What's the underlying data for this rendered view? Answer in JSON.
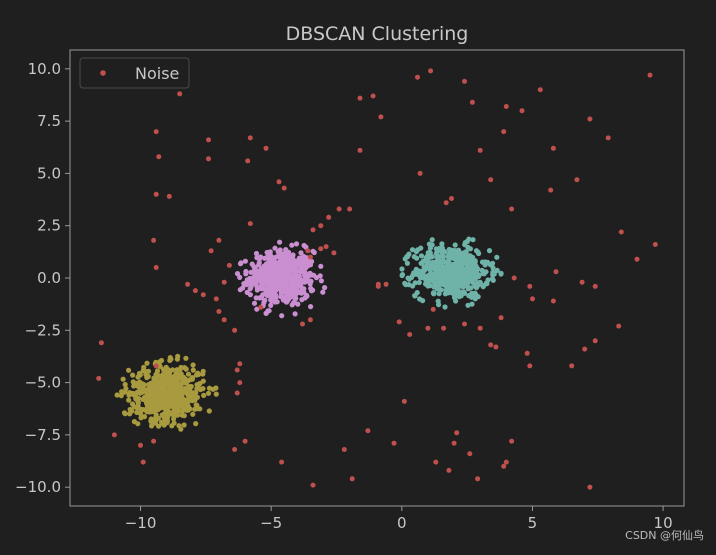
{
  "watermark": "CSDN @何仙鸟",
  "chart_data": {
    "type": "scatter",
    "title": "DBSCAN Clustering",
    "xlabel": "",
    "ylabel": "",
    "xlim": [
      -12.7,
      10.8
    ],
    "ylim": [
      -10.9,
      10.9
    ],
    "xticks": [
      -10,
      -5,
      0,
      5,
      10
    ],
    "yticks": [
      -10.0,
      -7.5,
      -5.0,
      -2.5,
      0.0,
      2.5,
      5.0,
      7.5,
      10.0
    ],
    "xtick_labels": [
      "−10",
      "−5",
      "0",
      "5",
      "10"
    ],
    "ytick_labels": [
      "−10.0",
      "−7.5",
      "−5.0",
      "−2.5",
      "0.0",
      "2.5",
      "5.0",
      "7.5",
      "10.0"
    ],
    "grid": false,
    "legend": {
      "position": "top-left",
      "entries": [
        "Noise"
      ]
    },
    "colors": {
      "background": "#1f1f1f",
      "axes": "#9a9a9a",
      "text": "#c8c8c8",
      "noise": "#c0504d"
    },
    "clusters": [
      {
        "color": "#c98fd0",
        "center": [
          -4.6,
          0.0
        ],
        "spread": [
          0.85,
          0.9
        ],
        "count": 520
      },
      {
        "color": "#6fb2a8",
        "center": [
          1.9,
          0.3
        ],
        "spread": [
          0.95,
          0.85
        ],
        "count": 520
      },
      {
        "color": "#a89a3e",
        "center": [
          -9.0,
          -5.5
        ],
        "spread": [
          0.95,
          0.9
        ],
        "count": 520
      }
    ],
    "series": [
      {
        "name": "Noise",
        "color": "#c0504d",
        "points": [
          [
            -11.5,
            -3.1
          ],
          [
            -11.6,
            -4.8
          ],
          [
            -11.0,
            -7.5
          ],
          [
            -10.0,
            -8.0
          ],
          [
            -9.9,
            -8.8
          ],
          [
            -9.5,
            -7.8
          ],
          [
            -9.4,
            -4.2
          ],
          [
            -9.5,
            1.8
          ],
          [
            -9.4,
            0.5
          ],
          [
            -9.4,
            7.0
          ],
          [
            -9.3,
            5.8
          ],
          [
            -9.4,
            4.0
          ],
          [
            -8.9,
            3.9
          ],
          [
            -8.5,
            8.8
          ],
          [
            -8.2,
            -0.3
          ],
          [
            -7.9,
            -0.6
          ],
          [
            -7.6,
            -0.8
          ],
          [
            -7.4,
            6.6
          ],
          [
            -7.4,
            5.7
          ],
          [
            -7.0,
            1.8
          ],
          [
            -7.3,
            1.3
          ],
          [
            -7.0,
            -1.6
          ],
          [
            -7.1,
            -1.0
          ],
          [
            -6.8,
            -0.2
          ],
          [
            -6.6,
            0.6
          ],
          [
            -6.8,
            -2.0
          ],
          [
            -6.4,
            -2.5
          ],
          [
            -6.2,
            -4.1
          ],
          [
            -6.3,
            -4.4
          ],
          [
            -6.2,
            -5.0
          ],
          [
            -6.3,
            -5.5
          ],
          [
            -6.0,
            -7.8
          ],
          [
            -6.4,
            -8.2
          ],
          [
            -5.9,
            5.6
          ],
          [
            -5.8,
            6.7
          ],
          [
            -5.8,
            2.6
          ],
          [
            -5.4,
            -1.4
          ],
          [
            -5.2,
            6.2
          ],
          [
            -4.7,
            4.6
          ],
          [
            -4.5,
            4.3
          ],
          [
            -4.6,
            -8.8
          ],
          [
            -3.8,
            -2.2
          ],
          [
            -3.6,
            1.3
          ],
          [
            -3.5,
            -2.0
          ],
          [
            -3.5,
            1.0
          ],
          [
            -3.4,
            2.3
          ],
          [
            -3.4,
            -9.9
          ],
          [
            -3.1,
            1.4
          ],
          [
            -3.1,
            2.5
          ],
          [
            -2.9,
            1.5
          ],
          [
            -2.8,
            2.9
          ],
          [
            -2.6,
            1.2
          ],
          [
            -2.4,
            3.3
          ],
          [
            -2.2,
            -8.2
          ],
          [
            -2.0,
            3.3
          ],
          [
            -1.9,
            -9.6
          ],
          [
            -1.6,
            8.6
          ],
          [
            -1.6,
            6.1
          ],
          [
            -1.3,
            -7.3
          ],
          [
            -1.1,
            8.7
          ],
          [
            -0.9,
            -0.3
          ],
          [
            -0.8,
            7.7
          ],
          [
            -0.6,
            -0.3
          ],
          [
            -0.9,
            -0.4
          ],
          [
            -0.3,
            -7.9
          ],
          [
            -0.1,
            -2.1
          ],
          [
            0.1,
            -5.9
          ],
          [
            0.3,
            -2.7
          ],
          [
            0.6,
            9.6
          ],
          [
            0.7,
            5.0
          ],
          [
            1.0,
            -2.4
          ],
          [
            1.1,
            9.9
          ],
          [
            1.2,
            -1.5
          ],
          [
            1.3,
            -8.8
          ],
          [
            1.8,
            -9.2
          ],
          [
            1.9,
            3.8
          ],
          [
            1.7,
            3.6
          ],
          [
            1.6,
            -2.4
          ],
          [
            2.1,
            -7.4
          ],
          [
            2.0,
            -7.9
          ],
          [
            2.4,
            9.4
          ],
          [
            2.4,
            -2.2
          ],
          [
            2.6,
            -8.4
          ],
          [
            2.7,
            8.4
          ],
          [
            2.9,
            -9.6
          ],
          [
            3.0,
            6.1
          ],
          [
            3.0,
            -2.4
          ],
          [
            3.4,
            4.7
          ],
          [
            3.4,
            -3.2
          ],
          [
            3.6,
            -3.3
          ],
          [
            3.8,
            -1.9
          ],
          [
            3.9,
            -9.0
          ],
          [
            3.9,
            7.0
          ],
          [
            4.0,
            8.2
          ],
          [
            4.0,
            -8.8
          ],
          [
            4.2,
            -7.8
          ],
          [
            4.2,
            3.3
          ],
          [
            4.3,
            0.0
          ],
          [
            4.6,
            8.0
          ],
          [
            4.8,
            -3.6
          ],
          [
            4.9,
            -4.2
          ],
          [
            4.9,
            -0.4
          ],
          [
            5.0,
            -1.0
          ],
          [
            5.3,
            9.0
          ],
          [
            5.7,
            4.2
          ],
          [
            5.8,
            6.2
          ],
          [
            5.8,
            -1.1
          ],
          [
            5.9,
            0.3
          ],
          [
            6.5,
            -4.2
          ],
          [
            6.7,
            4.7
          ],
          [
            6.9,
            -0.2
          ],
          [
            7.0,
            -3.4
          ],
          [
            7.2,
            -10.0
          ],
          [
            7.2,
            7.6
          ],
          [
            7.4,
            -0.4
          ],
          [
            7.4,
            -3.0
          ],
          [
            7.9,
            6.7
          ],
          [
            8.3,
            -2.3
          ],
          [
            8.4,
            2.2
          ],
          [
            9.0,
            0.9
          ],
          [
            9.5,
            9.7
          ],
          [
            9.7,
            1.6
          ]
        ]
      }
    ]
  }
}
